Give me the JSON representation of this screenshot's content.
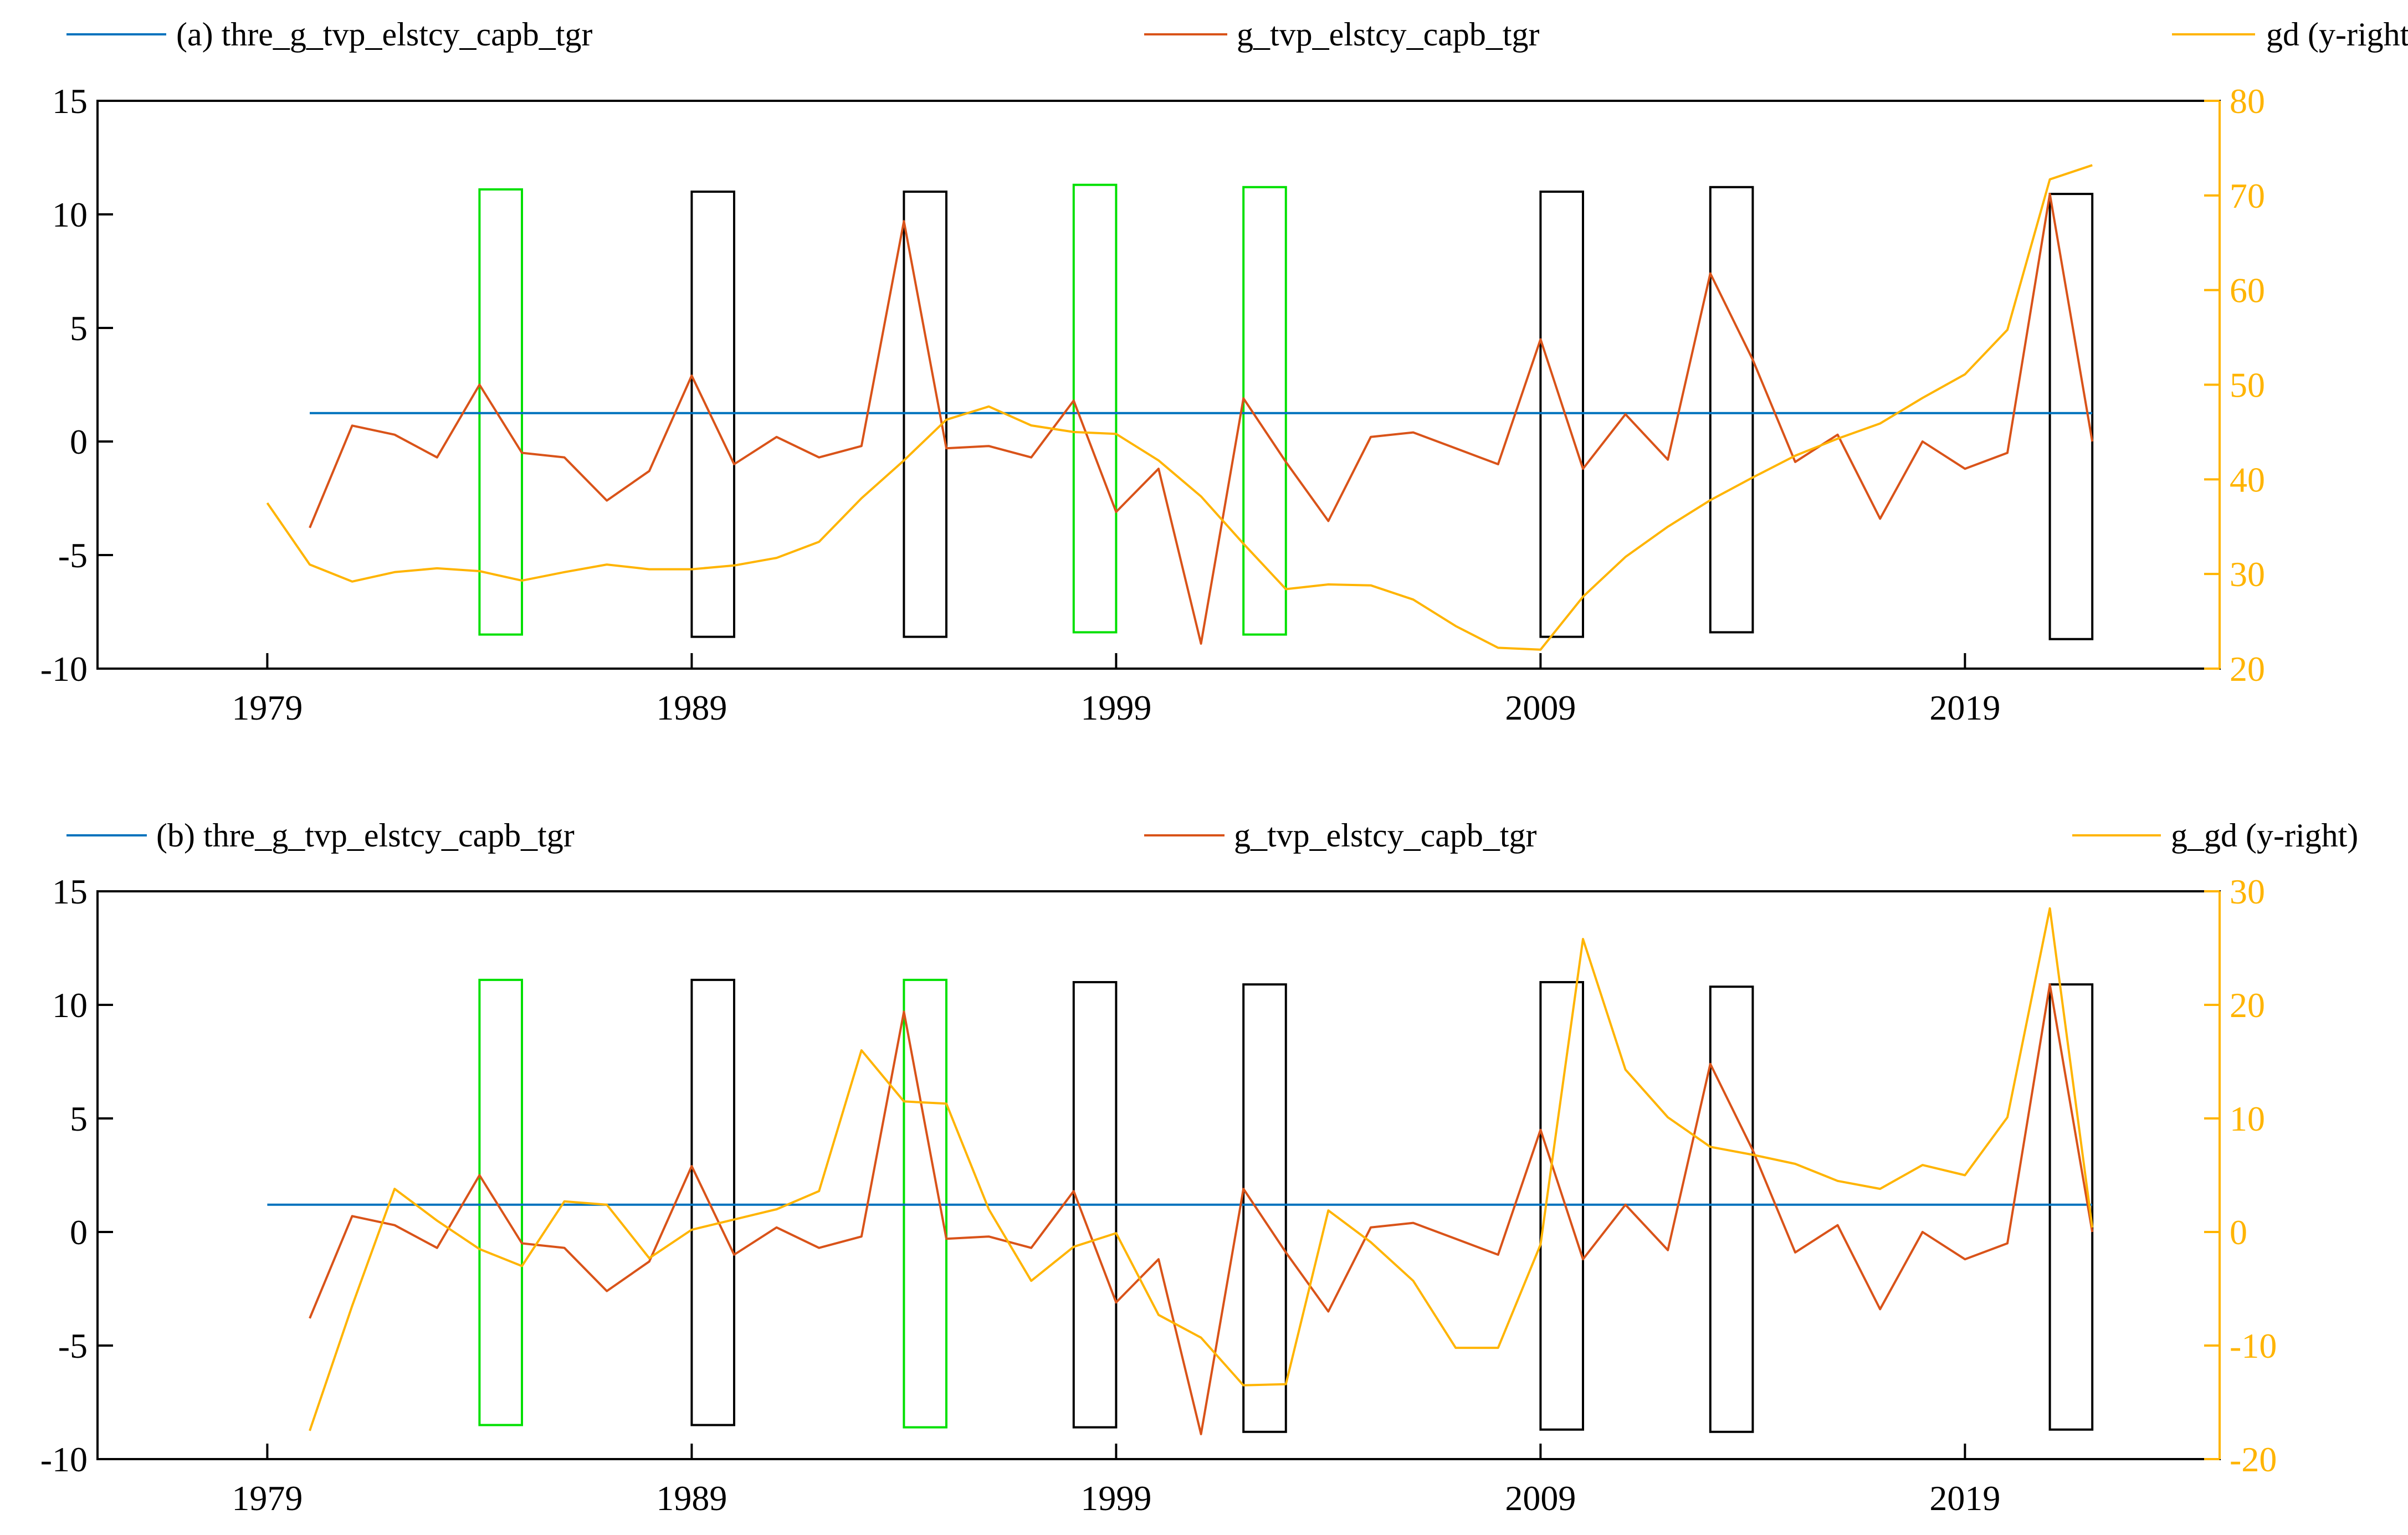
{
  "colors": {
    "threshold": "#0072BD",
    "series": "#D95319",
    "right_series": "#FFB400",
    "green_box": "#00E000",
    "black_box": "#000000",
    "axis": "#000000"
  },
  "chart_data": [
    {
      "type": "line",
      "panel": "a",
      "title": "",
      "xlabel": "",
      "ylabel": "",
      "xlim": [
        1975,
        2025
      ],
      "xticks": [
        1979,
        1989,
        1999,
        2009,
        2019
      ],
      "xtick_labels": [
        "1979",
        "1989",
        "1999",
        "2009",
        "2019"
      ],
      "ylim": [
        -10,
        15
      ],
      "yticks": [
        -10,
        -5,
        0,
        5,
        10,
        15
      ],
      "ytick_labels": [
        "-10",
        "-5",
        "0",
        "5",
        "10",
        "15"
      ],
      "y2lim": [
        20,
        80
      ],
      "y2ticks": [
        20,
        30,
        40,
        50,
        60,
        70,
        80
      ],
      "y2tick_labels": [
        "20",
        "30",
        "40",
        "50",
        "60",
        "70",
        "80"
      ],
      "legend": {
        "placement": "top",
        "entries": [
          "(a) thre_g_tvp_elstcy_capb_tgr",
          "g_tvp_elstcy_capb_tgr",
          "gd (y-right)"
        ]
      },
      "series": [
        {
          "name": "(a) thre_g_tvp_elstcy_capb_tgr",
          "axis": "left",
          "x": [
            1980,
            2022
          ],
          "values": [
            1.25,
            1.25
          ]
        },
        {
          "name": "g_tvp_elstcy_capb_tgr",
          "axis": "left",
          "x": [
            1980,
            1981,
            1982,
            1983,
            1984,
            1985,
            1986,
            1987,
            1988,
            1989,
            1990,
            1991,
            1992,
            1993,
            1994,
            1995,
            1996,
            1997,
            1998,
            1999,
            2000,
            2001,
            2002,
            2003,
            2004,
            2005,
            2006,
            2007,
            2008,
            2009,
            2010,
            2011,
            2012,
            2013,
            2014,
            2015,
            2016,
            2017,
            2018,
            2019,
            2020,
            2021,
            2022
          ],
          "values": [
            -3.8,
            0.7,
            0.3,
            -0.7,
            2.5,
            -0.5,
            -0.7,
            -2.6,
            -1.3,
            2.9,
            -1.0,
            0.2,
            -0.7,
            -0.2,
            9.7,
            -0.3,
            -0.2,
            -0.7,
            1.8,
            -3.1,
            -1.2,
            -8.9,
            1.9,
            -0.9,
            -3.5,
            0.2,
            0.4,
            -0.3,
            -1.0,
            4.5,
            -1.2,
            1.2,
            -0.8,
            7.4,
            3.6,
            -0.9,
            0.3,
            -3.4,
            0.0,
            -1.2,
            -0.5,
            10.9,
            0.0
          ]
        },
        {
          "name": "gd (y-right)",
          "axis": "right",
          "x": [
            1979,
            1980,
            1981,
            1982,
            1983,
            1984,
            1985,
            1986,
            1987,
            1988,
            1989,
            1990,
            1991,
            1992,
            1993,
            1994,
            1995,
            1996,
            1997,
            1998,
            1999,
            2000,
            2001,
            2002,
            2003,
            2004,
            2005,
            2006,
            2007,
            2008,
            2009,
            2010,
            2011,
            2012,
            2013,
            2014,
            2015,
            2016,
            2017,
            2018,
            2019,
            2020,
            2021,
            2022
          ],
          "values": [
            37.5,
            31.0,
            29.2,
            30.2,
            30.6,
            30.3,
            29.3,
            30.2,
            31.0,
            30.5,
            30.5,
            30.9,
            31.7,
            33.4,
            38.0,
            42.0,
            46.3,
            47.7,
            45.7,
            45.0,
            44.8,
            42.0,
            38.2,
            33.2,
            28.4,
            28.9,
            28.8,
            27.3,
            24.5,
            22.2,
            22.0,
            27.6,
            31.8,
            35.0,
            37.8,
            40.2,
            42.5,
            44.3,
            45.9,
            48.6,
            51.1,
            55.8,
            71.7,
            73.2
          ]
        }
      ],
      "boxes": [
        {
          "x0": 1984,
          "x1": 1985,
          "y0": -8.5,
          "y1": 11.1,
          "color": "green"
        },
        {
          "x0": 1989,
          "x1": 1990,
          "y0": -8.6,
          "y1": 11.0,
          "color": "black"
        },
        {
          "x0": 1994,
          "x1": 1995,
          "y0": -8.6,
          "y1": 11.0,
          "color": "black"
        },
        {
          "x0": 1998,
          "x1": 1999,
          "y0": -8.4,
          "y1": 11.3,
          "color": "green"
        },
        {
          "x0": 2002,
          "x1": 2003,
          "y0": -8.5,
          "y1": 11.2,
          "color": "green"
        },
        {
          "x0": 2009,
          "x1": 2010,
          "y0": -8.6,
          "y1": 11.0,
          "color": "black"
        },
        {
          "x0": 2013,
          "x1": 2014,
          "y0": -8.4,
          "y1": 11.2,
          "color": "black"
        },
        {
          "x0": 2021,
          "x1": 2022,
          "y0": -8.7,
          "y1": 10.9,
          "color": "black"
        }
      ]
    },
    {
      "type": "line",
      "panel": "b",
      "title": "",
      "xlabel": "",
      "ylabel": "",
      "xlim": [
        1975,
        2025
      ],
      "xticks": [
        1979,
        1989,
        1999,
        2009,
        2019
      ],
      "xtick_labels": [
        "1979",
        "1989",
        "1999",
        "2009",
        "2019"
      ],
      "ylim": [
        -10,
        15
      ],
      "yticks": [
        -10,
        -5,
        0,
        5,
        10,
        15
      ],
      "ytick_labels": [
        "-10",
        "-5",
        "0",
        "5",
        "10",
        "15"
      ],
      "y2lim": [
        -20,
        30
      ],
      "y2ticks": [
        -20,
        -10,
        0,
        10,
        20,
        30
      ],
      "y2tick_labels": [
        "-20",
        "-10",
        "0",
        "10",
        "20",
        "30"
      ],
      "legend": {
        "placement": "top",
        "entries": [
          "(b) thre_g_tvp_elstcy_capb_tgr",
          "g_tvp_elstcy_capb_tgr",
          "g_gd (y-right)"
        ]
      },
      "series": [
        {
          "name": "(b) thre_g_tvp_elstcy_capb_tgr",
          "axis": "left",
          "x": [
            1979,
            2022
          ],
          "values": [
            1.2,
            1.2
          ]
        },
        {
          "name": "g_tvp_elstcy_capb_tgr",
          "axis": "left",
          "x": [
            1980,
            1981,
            1982,
            1983,
            1984,
            1985,
            1986,
            1987,
            1988,
            1989,
            1990,
            1991,
            1992,
            1993,
            1994,
            1995,
            1996,
            1997,
            1998,
            1999,
            2000,
            2001,
            2002,
            2003,
            2004,
            2005,
            2006,
            2007,
            2008,
            2009,
            2010,
            2011,
            2012,
            2013,
            2014,
            2015,
            2016,
            2017,
            2018,
            2019,
            2020,
            2021,
            2022
          ],
          "values": [
            -3.8,
            0.7,
            0.3,
            -0.7,
            2.5,
            -0.5,
            -0.7,
            -2.6,
            -1.3,
            2.9,
            -1.0,
            0.2,
            -0.7,
            -0.2,
            9.7,
            -0.3,
            -0.2,
            -0.7,
            1.8,
            -3.1,
            -1.2,
            -8.9,
            1.9,
            -0.9,
            -3.5,
            0.2,
            0.4,
            -0.3,
            -1.0,
            4.5,
            -1.2,
            1.2,
            -0.8,
            7.4,
            3.6,
            -0.9,
            0.3,
            -3.4,
            0.0,
            -1.2,
            -0.5,
            10.9,
            0.0
          ]
        },
        {
          "name": "g_gd (y-right)",
          "axis": "right",
          "x": [
            1980,
            1981,
            1982,
            1983,
            1984,
            1985,
            1986,
            1987,
            1988,
            1989,
            1990,
            1991,
            1992,
            1993,
            1994,
            1995,
            1996,
            1997,
            1998,
            1999,
            2000,
            2001,
            2002,
            2003,
            2004,
            2005,
            2006,
            2007,
            2008,
            2009,
            2010,
            2011,
            2012,
            2013,
            2014,
            2015,
            2016,
            2017,
            2018,
            2019,
            2020,
            2021,
            2022
          ],
          "values": [
            -17.5,
            -6.5,
            3.8,
            1.0,
            -1.5,
            -3.0,
            2.7,
            2.4,
            -2.3,
            0.2,
            1.1,
            2.0,
            3.6,
            16.0,
            11.5,
            11.3,
            2.0,
            -4.3,
            -1.3,
            -0.1,
            -7.3,
            -9.3,
            -13.5,
            -13.4,
            1.9,
            -0.9,
            -4.3,
            -10.2,
            -10.2,
            -1.1,
            25.8,
            14.3,
            10.1,
            7.5,
            6.8,
            6.0,
            4.5,
            3.8,
            5.9,
            5.0,
            10.1,
            28.5,
            0.4
          ]
        }
      ],
      "boxes": [
        {
          "x0": 1984,
          "x1": 1985,
          "y0": -8.5,
          "y1": 11.1,
          "color": "green"
        },
        {
          "x0": 1989,
          "x1": 1990,
          "y0": -8.5,
          "y1": 11.1,
          "color": "black"
        },
        {
          "x0": 1994,
          "x1": 1995,
          "y0": -8.6,
          "y1": 11.1,
          "color": "green"
        },
        {
          "x0": 1998,
          "x1": 1999,
          "y0": -8.6,
          "y1": 11.0,
          "color": "black"
        },
        {
          "x0": 2002,
          "x1": 2003,
          "y0": -8.8,
          "y1": 10.9,
          "color": "black"
        },
        {
          "x0": 2009,
          "x1": 2010,
          "y0": -8.7,
          "y1": 11.0,
          "color": "black"
        },
        {
          "x0": 2013,
          "x1": 2014,
          "y0": -8.8,
          "y1": 10.8,
          "color": "black"
        },
        {
          "x0": 2021,
          "x1": 2022,
          "y0": -8.7,
          "y1": 10.9,
          "color": "black"
        }
      ]
    }
  ]
}
